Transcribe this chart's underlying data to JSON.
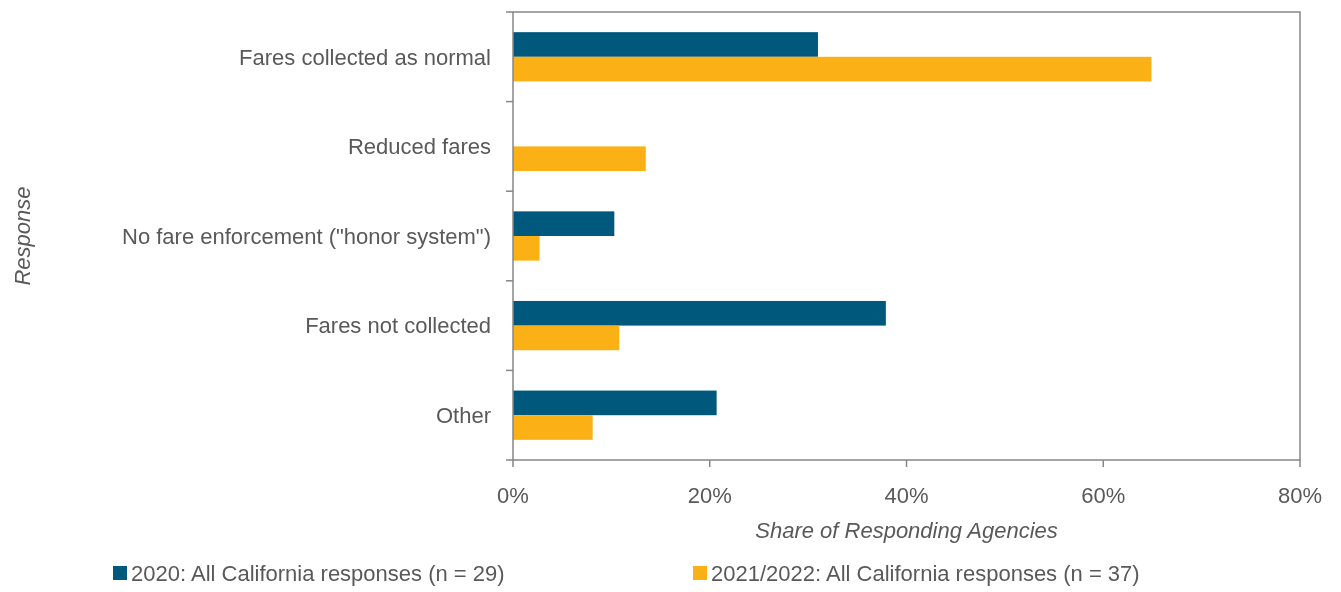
{
  "chart_data": {
    "type": "bar",
    "orientation": "horizontal",
    "categories": [
      "Fares collected as normal",
      "Reduced fares",
      "No fare enforcement (\"honor system\")",
      "Fares not collected",
      "Other"
    ],
    "series": [
      {
        "name": "2020: All California responses (n = 29)",
        "color": "#00587c",
        "values": [
          31,
          0,
          10.3,
          37.9,
          20.7
        ]
      },
      {
        "name": "2021/2022: All California responses (n = 37)",
        "color": "#fbb116",
        "values": [
          64.9,
          13.5,
          2.7,
          10.8,
          8.1
        ]
      }
    ],
    "xlim": [
      0,
      80
    ],
    "xticks": [
      {
        "value": 0,
        "label": "0%"
      },
      {
        "value": 20,
        "label": "20%"
      },
      {
        "value": 40,
        "label": "40%"
      },
      {
        "value": 60,
        "label": "60%"
      },
      {
        "value": 80,
        "label": "80%"
      }
    ],
    "xlabel": "Share of Responding Agencies",
    "ylabel": "Response",
    "grid": false,
    "legend": "bottom"
  }
}
